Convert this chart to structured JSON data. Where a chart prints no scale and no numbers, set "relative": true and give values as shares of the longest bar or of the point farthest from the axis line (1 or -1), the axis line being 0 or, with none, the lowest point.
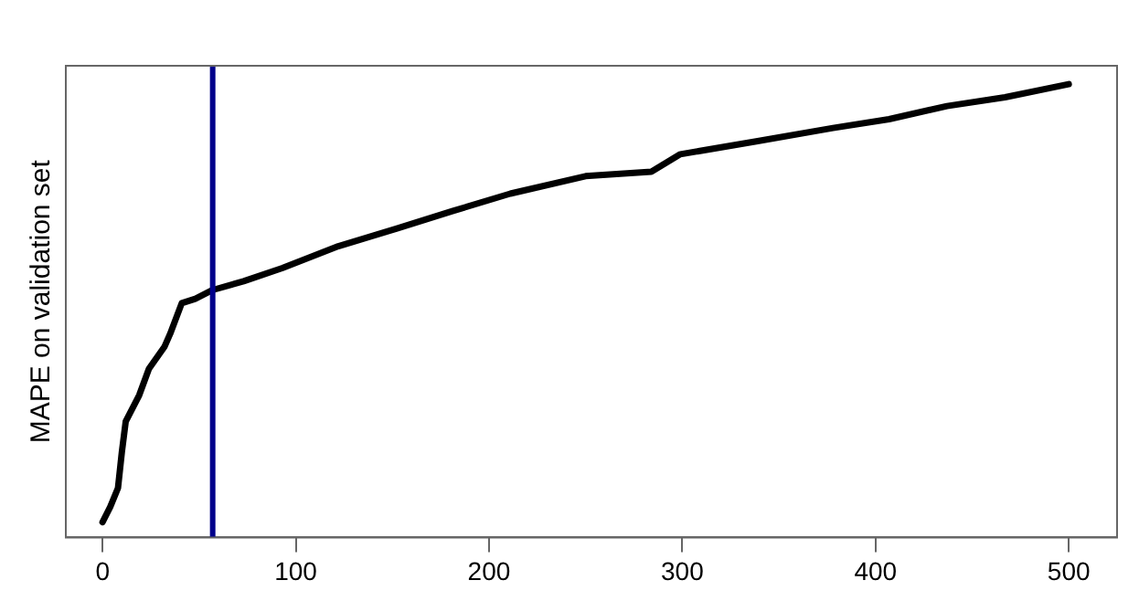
{
  "chart_data": {
    "type": "line",
    "relative": true,
    "ylabel": "MAPE on validation set",
    "xlim": [
      -19,
      525
    ],
    "xticks": [
      0,
      100,
      200,
      300,
      400,
      500
    ],
    "grid": false,
    "legend": false,
    "marker": "none",
    "line_style": "solid",
    "series": [
      {
        "color": "#000000",
        "x": [
          0,
          4,
          8,
          10,
          12,
          19,
          24,
          32,
          35,
          41,
          48,
          57,
          73,
          93,
          122,
          152,
          181,
          211,
          250,
          284,
          299,
          339,
          378,
          407,
          437,
          467,
          500
        ],
        "values": [
          0,
          0.035,
          0.078,
          0.16,
          0.23,
          0.29,
          0.35,
          0.4,
          0.43,
          0.5,
          0.51,
          0.53,
          0.55,
          0.58,
          0.63,
          0.67,
          0.71,
          0.75,
          0.79,
          0.8,
          0.84,
          0.87,
          0.9,
          0.92,
          0.95,
          0.97,
          1.0
        ]
      }
    ],
    "ref_lines": [
      {
        "axis": "x",
        "value": 57,
        "color": "#00008b"
      }
    ]
  }
}
